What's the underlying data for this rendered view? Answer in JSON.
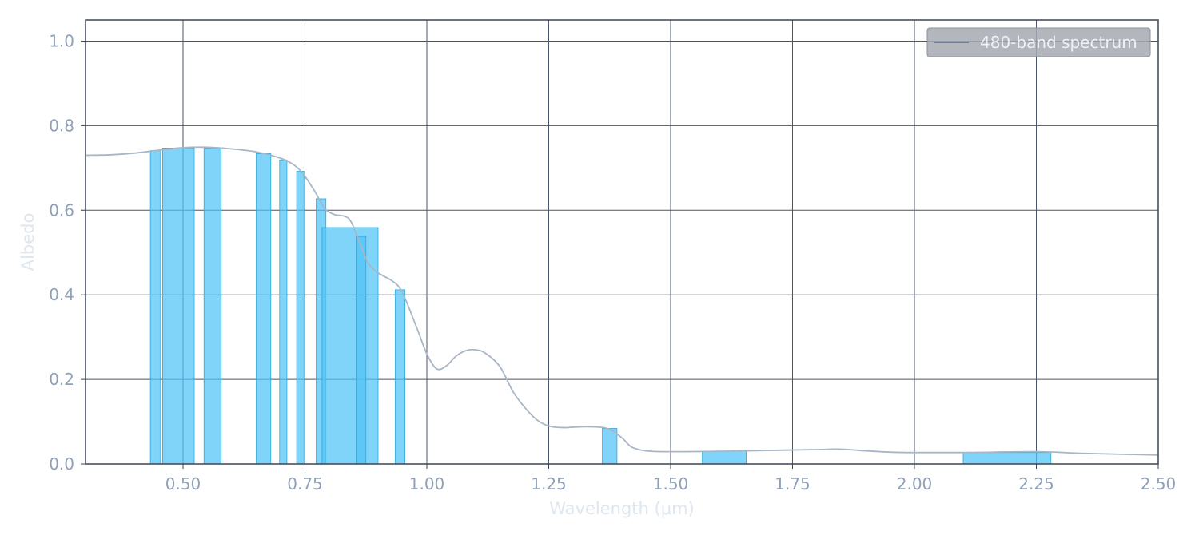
{
  "chart_data": {
    "type": "bar",
    "xlabel": "Wavelength (μm)",
    "ylabel": "Albedo",
    "xlim": [
      0.3,
      2.5
    ],
    "ylim": [
      0.0,
      1.05
    ],
    "x_ticks": [
      "0.50",
      "0.75",
      "1.00",
      "1.25",
      "1.50",
      "1.75",
      "2.00",
      "2.25",
      "2.50"
    ],
    "y_ticks": [
      "0.0",
      "0.2",
      "0.4",
      "0.6",
      "0.8",
      "1.0"
    ],
    "grid": true,
    "legend": {
      "placement": "top-right",
      "entries": [
        "480-band spectrum"
      ]
    },
    "colors": {
      "bars": "#4fc3f7",
      "bar_edge": "#29a9d8",
      "spectrum_line": "#a9b6c6",
      "grid": "#4a5468",
      "axes": "#3a4456",
      "legend_bg": "#a6a9b1"
    },
    "bands": [
      {
        "x0": 0.433,
        "x1": 0.453,
        "albedo": 0.741
      },
      {
        "x0": 0.458,
        "x1": 0.523,
        "albedo": 0.747
      },
      {
        "x0": 0.543,
        "x1": 0.578,
        "albedo": 0.747
      },
      {
        "x0": 0.65,
        "x1": 0.68,
        "albedo": 0.734
      },
      {
        "x0": 0.698,
        "x1": 0.713,
        "albedo": 0.719
      },
      {
        "x0": 0.733,
        "x1": 0.748,
        "albedo": 0.692
      },
      {
        "x0": 0.773,
        "x1": 0.793,
        "albedo": 0.627
      },
      {
        "x0": 0.785,
        "x1": 0.9,
        "albedo": 0.559
      },
      {
        "x0": 0.855,
        "x1": 0.875,
        "albedo": 0.538
      },
      {
        "x0": 0.935,
        "x1": 0.955,
        "albedo": 0.412
      },
      {
        "x0": 1.36,
        "x1": 1.39,
        "albedo": 0.084
      },
      {
        "x0": 1.565,
        "x1": 1.655,
        "albedo": 0.03
      },
      {
        "x0": 2.1,
        "x1": 2.28,
        "albedo": 0.027
      }
    ],
    "spectrum": {
      "name": "480-band spectrum",
      "x": [
        0.3,
        0.35,
        0.4,
        0.45,
        0.5,
        0.55,
        0.6,
        0.65,
        0.7,
        0.73,
        0.75,
        0.77,
        0.79,
        0.81,
        0.84,
        0.86,
        0.88,
        0.9,
        0.93,
        0.95,
        0.98,
        1.0,
        1.02,
        1.04,
        1.06,
        1.08,
        1.1,
        1.12,
        1.15,
        1.18,
        1.22,
        1.25,
        1.28,
        1.3,
        1.33,
        1.37,
        1.4,
        1.42,
        1.45,
        1.5,
        1.6,
        1.7,
        1.8,
        1.85,
        1.9,
        1.95,
        2.0,
        2.1,
        2.25,
        2.35,
        2.5
      ],
      "y": [
        0.73,
        0.731,
        0.735,
        0.742,
        0.748,
        0.749,
        0.745,
        0.738,
        0.723,
        0.705,
        0.68,
        0.645,
        0.605,
        0.59,
        0.58,
        0.53,
        0.475,
        0.452,
        0.432,
        0.405,
        0.32,
        0.26,
        0.225,
        0.232,
        0.255,
        0.268,
        0.27,
        0.262,
        0.23,
        0.165,
        0.11,
        0.09,
        0.086,
        0.087,
        0.088,
        0.084,
        0.062,
        0.04,
        0.031,
        0.029,
        0.03,
        0.032,
        0.034,
        0.035,
        0.031,
        0.028,
        0.027,
        0.027,
        0.029,
        0.025,
        0.021
      ]
    }
  }
}
